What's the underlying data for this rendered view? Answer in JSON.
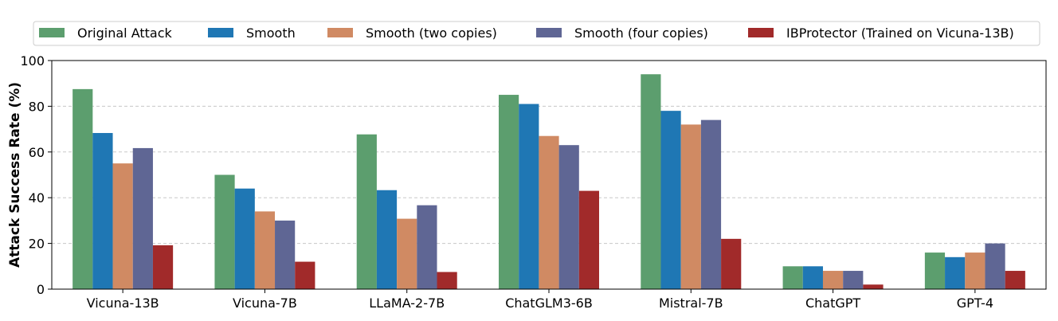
{
  "chart_data": {
    "type": "bar",
    "title": "",
    "xlabel": "",
    "ylabel": "Attack Success Rate (%)",
    "ylim": [
      0,
      100
    ],
    "yticks": [
      0,
      20,
      40,
      60,
      80,
      100
    ],
    "grid": true,
    "legend_position": "top",
    "categories": [
      "Vicuna-13B",
      "Vicuna-7B",
      "LLaMA-2-7B",
      "ChatGLM3-6B",
      "Mistral-7B",
      "ChatGPT",
      "GPT-4"
    ],
    "series": [
      {
        "name": "Original Attack",
        "color": "#5c9e6e",
        "values": [
          87.5,
          50,
          67.7,
          85,
          94,
          10,
          16
        ]
      },
      {
        "name": "Smooth",
        "color": "#1f77b4",
        "values": [
          68.3,
          44,
          43.3,
          81,
          78,
          10,
          14
        ]
      },
      {
        "name": "Smooth (two copies)",
        "color": "#d08a63",
        "values": [
          55,
          34,
          30.8,
          67,
          72,
          8,
          16
        ]
      },
      {
        "name": "Smooth (four copies)",
        "color": "#5f6694",
        "values": [
          61.7,
          30,
          36.7,
          63,
          74,
          8,
          20
        ]
      },
      {
        "name": "IBProtector (Trained on Vicuna-13B)",
        "color": "#a12a2a",
        "values": [
          19.2,
          12,
          7.5,
          43,
          22,
          2,
          8
        ]
      }
    ]
  }
}
